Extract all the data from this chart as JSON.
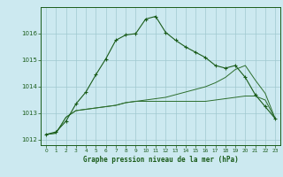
{
  "title": "Graphe pression niveau de la mer (hPa)",
  "background_color": "#cce9f0",
  "grid_color": "#a0c8d0",
  "line_color_main": "#1a5c1a",
  "line_color_light": "#2d6e2d",
  "xlim": [
    -0.5,
    23.5
  ],
  "ylim": [
    1011.8,
    1017.0
  ],
  "yticks": [
    1012,
    1013,
    1014,
    1015,
    1016
  ],
  "xticks": [
    0,
    1,
    2,
    3,
    4,
    5,
    6,
    7,
    8,
    9,
    10,
    11,
    12,
    13,
    14,
    15,
    16,
    17,
    18,
    19,
    20,
    21,
    22,
    23
  ],
  "hours": [
    0,
    1,
    2,
    3,
    4,
    5,
    6,
    7,
    8,
    9,
    10,
    11,
    12,
    13,
    14,
    15,
    16,
    17,
    18,
    19,
    20,
    21,
    22,
    23
  ],
  "line1": [
    1012.2,
    1012.3,
    1012.7,
    1013.35,
    1013.8,
    1014.45,
    1015.05,
    1015.75,
    1015.95,
    1016.0,
    1016.55,
    1016.65,
    1016.05,
    1015.75,
    1015.5,
    1015.3,
    1015.1,
    1014.8,
    1014.7,
    1014.8,
    1014.35,
    1013.7,
    1013.25,
    1012.8
  ],
  "line2": [
    1012.2,
    1012.25,
    1012.85,
    1013.1,
    1013.15,
    1013.2,
    1013.25,
    1013.3,
    1013.4,
    1013.45,
    1013.45,
    1013.45,
    1013.45,
    1013.45,
    1013.45,
    1013.45,
    1013.45,
    1013.5,
    1013.55,
    1013.6,
    1013.65,
    1013.65,
    1013.5,
    1012.8
  ],
  "line3": [
    1012.2,
    1012.25,
    1012.85,
    1013.1,
    1013.15,
    1013.2,
    1013.25,
    1013.3,
    1013.4,
    1013.45,
    1013.5,
    1013.55,
    1013.6,
    1013.7,
    1013.8,
    1013.9,
    1014.0,
    1014.15,
    1014.35,
    1014.65,
    1014.8,
    1014.25,
    1013.75,
    1012.8
  ],
  "fig_width": 3.2,
  "fig_height": 2.0,
  "dpi": 100
}
